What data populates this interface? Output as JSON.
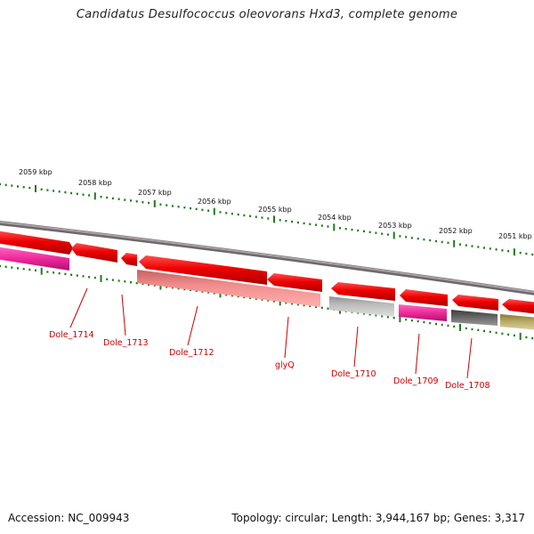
{
  "title": "Candidatus Desulfococcus oleovorans Hxd3, complete genome",
  "footer": {
    "accession": "Accession: NC_009943",
    "summary": "Topology: circular; Length: 3,944,167 bp; Genes: 3,317"
  },
  "scale_labels": [
    "2059 kbp",
    "2058 kbp",
    "2057 kbp",
    "2056 kbp",
    "2055 kbp",
    "2054 kbp",
    "2053 kbp",
    "2052 kbp",
    "2051 kbp"
  ],
  "colors": {
    "backbone": "#8a8488",
    "tick": "#1f7a1f",
    "label": "#cc0000",
    "red_feature": "#ee0000",
    "pink_feature": "#ee2a9a",
    "salmon_feature": "#ee8080",
    "grey_feature": "#b8b8b8",
    "dark_grey_feature": "#666666",
    "olive_feature": "#b8aa66"
  },
  "gene_labels": [
    "Dole_1714",
    "Dole_1713",
    "Dole_1712",
    "glyQ",
    "Dole_1710",
    "Dole_1709",
    "Dole_1708"
  ]
}
